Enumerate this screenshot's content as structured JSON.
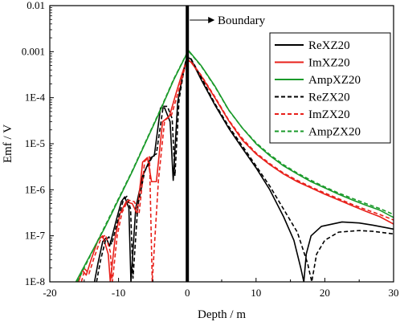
{
  "chart_data": {
    "type": "line",
    "title": "",
    "xlabel": "Depth / m",
    "ylabel": "Emf / V",
    "xlim": [
      -20,
      30
    ],
    "ylim": [
      1e-08,
      0.01
    ],
    "yscale": "log",
    "grid": false,
    "x_ticks": [
      -20,
      -10,
      0,
      10,
      20,
      30
    ],
    "x_tick_labels": [
      "-20",
      "-10",
      "0",
      "10",
      "20",
      "30"
    ],
    "y_ticks": [
      1e-08,
      1e-07,
      1e-06,
      1e-05,
      0.0001,
      0.001,
      0.01
    ],
    "y_tick_labels": [
      "1E-8",
      "1E-7",
      "1E-6",
      "1E-5",
      "1E-4",
      "0.001",
      "0.01"
    ],
    "legend_position": "top-right",
    "annotation": {
      "text": "Boundary",
      "x": 0
    },
    "series": [
      {
        "name": "ReXZ20",
        "color": "#000000",
        "dash": "solid",
        "x": [
          -13.5,
          -13,
          -12.3,
          -11.8,
          -11.3,
          -10.4,
          -9.6,
          -9.1,
          -8.5,
          -8.2,
          -7.5,
          -6.5,
          -5.3,
          -4.8,
          -3.9,
          -3.3,
          -2.5,
          -2.05,
          -1.4,
          -0.7,
          -0.25,
          0,
          0.5,
          2,
          4,
          6,
          8,
          10,
          12,
          14,
          15.5,
          16.5,
          16.95,
          17.3,
          18,
          19.5,
          22.5,
          25,
          27,
          30
        ],
        "y": [
          1e-08,
          2.5e-08,
          7.5e-08,
          9e-08,
          6e-08,
          2e-07,
          5.5e-07,
          7e-07,
          4e-07,
          1e-08,
          4e-07,
          2e-06,
          5e-06,
          5.5e-06,
          6e-05,
          6e-05,
          3e-05,
          1.6e-06,
          8e-05,
          0.0003,
          0.0006,
          0.00075,
          0.0007,
          0.00025,
          7e-05,
          2.2e-05,
          8e-06,
          3e-06,
          1e-06,
          2.6e-07,
          8e-08,
          2e-08,
          1e-08,
          4e-08,
          1e-07,
          1.6e-07,
          2e-07,
          1.9e-07,
          1.7e-07,
          1.4e-07
        ]
      },
      {
        "name": "ImXZ20",
        "color": "#e8201a",
        "dash": "solid",
        "x": [
          -15.8,
          -15.3,
          -14.7,
          -14,
          -13,
          -12.3,
          -11.5,
          -11.2,
          -10.5,
          -9.8,
          -8.9,
          -8,
          -7.3,
          -6.5,
          -5.8,
          -5.2,
          -4.5,
          -3.6,
          -2.6,
          -1.6,
          -0.8,
          -0.1,
          0.5,
          2,
          4,
          6,
          8,
          10,
          12,
          14,
          16,
          18,
          20,
          22,
          24,
          26,
          28,
          30
        ],
        "y": [
          1e-08,
          1.8e-08,
          1.4e-08,
          3e-08,
          8e-08,
          1e-07,
          4e-08,
          1e-08,
          9e-08,
          3e-07,
          5.5e-07,
          5e-07,
          3e-07,
          4e-06,
          5e-06,
          1.5e-06,
          1.5e-06,
          3e-05,
          4e-05,
          0.00013,
          0.00032,
          0.00065,
          0.0006,
          0.0003,
          0.0001,
          3.2e-05,
          1.2e-05,
          6e-06,
          3.5e-06,
          2.2e-06,
          1.5e-06,
          1.1e-06,
          8e-07,
          6e-07,
          4.5e-07,
          3.4e-07,
          2.6e-07,
          1.8e-07
        ]
      },
      {
        "name": "AmpXZ20",
        "color": "#1a9a2a",
        "dash": "solid",
        "x": [
          -16.2,
          -12,
          -8,
          -4,
          -2,
          0,
          0.2,
          2,
          4,
          6,
          8,
          10,
          12,
          14,
          16,
          18,
          20,
          22,
          24,
          26,
          28,
          30
        ],
        "y": [
          1e-08,
          1.5e-07,
          2.5e-06,
          5e-05,
          0.00024,
          0.00095,
          0.00105,
          0.0005,
          0.00018,
          5.5e-05,
          2.2e-05,
          1e-05,
          5.5e-06,
          3.3e-06,
          2.2e-06,
          1.5e-06,
          1.1e-06,
          8e-07,
          6e-07,
          4.6e-07,
          3.6e-07,
          2.5e-07
        ]
      },
      {
        "name": "ReZX20",
        "color": "#000000",
        "dash": "dashed",
        "x": [
          -13.2,
          -12.6,
          -11.9,
          -11.4,
          -11,
          -10.1,
          -9.3,
          -8.8,
          -8.25,
          -7.9,
          -7.2,
          -6.2,
          -5,
          -4.5,
          -3.5,
          -2.9,
          -2.2,
          -1.8,
          -1.2,
          -0.6,
          -0.2,
          0,
          0.5,
          2,
          4,
          6,
          8,
          10,
          12,
          14,
          16,
          17.5,
          18.1,
          18.8,
          20,
          22,
          25,
          27,
          30
        ],
        "y": [
          1e-08,
          3e-08,
          8e-08,
          9.5e-08,
          6.5e-08,
          2.2e-07,
          6e-07,
          7.2e-07,
          3.8e-07,
          1.2e-08,
          4.5e-07,
          2.5e-06,
          5.5e-06,
          6e-06,
          6.5e-05,
          6.5e-05,
          3.5e-05,
          2e-06,
          9e-05,
          0.00032,
          0.00062,
          0.00078,
          0.00072,
          0.00028,
          7.5e-05,
          2.4e-05,
          9e-06,
          3.3e-06,
          1.2e-06,
          3.8e-07,
          1.2e-07,
          2.5e-08,
          1e-08,
          4e-08,
          8e-08,
          1.2e-07,
          1.3e-07,
          1.25e-07,
          1.1e-07
        ]
      },
      {
        "name": "ImZX20",
        "color": "#e8201a",
        "dash": "dashed",
        "x": [
          -15.4,
          -14.9,
          -14.3,
          -13.6,
          -12.6,
          -11.9,
          -11.2,
          -10.9,
          -10.2,
          -9.5,
          -8.6,
          -7.7,
          -7,
          -6.2,
          -5.5,
          -5.1,
          -4.2,
          -3.3,
          -2.3,
          -1.3,
          -0.6,
          0,
          0.5,
          2,
          4,
          6,
          8,
          10,
          12,
          14,
          16,
          18,
          20,
          22,
          24,
          26,
          28,
          30
        ],
        "y": [
          1e-08,
          1.9e-08,
          1.5e-08,
          3.2e-08,
          8.5e-08,
          1.05e-07,
          4.5e-08,
          1e-08,
          1e-07,
          3.2e-07,
          6e-07,
          5.5e-07,
          3.2e-07,
          4.2e-06,
          5.2e-06,
          1e-08,
          1.6e-06,
          3.2e-05,
          4.2e-05,
          0.000135,
          0.00033,
          0.00068,
          0.00062,
          0.00031,
          0.000105,
          3.3e-05,
          1.3e-05,
          6.3e-06,
          3.7e-06,
          2.3e-06,
          1.6e-06,
          1.15e-06,
          8.5e-07,
          6.4e-07,
          4.8e-07,
          3.7e-07,
          2.9e-07,
          2.2e-07
        ]
      },
      {
        "name": "AmpZX20",
        "color": "#1a9a2a",
        "dash": "dashed",
        "x": [
          -16,
          -12,
          -8,
          -4,
          -2,
          0,
          0.2,
          2,
          4,
          6,
          8,
          10,
          12,
          14,
          16,
          18,
          20,
          22,
          24,
          26,
          28,
          30
        ],
        "y": [
          1e-08,
          1.6e-07,
          2.6e-06,
          5.2e-05,
          0.00025,
          0.00096,
          0.00102,
          0.00049,
          0.000175,
          5.4e-05,
          2.2e-05,
          1.05e-05,
          5.8e-06,
          3.5e-06,
          2.3e-06,
          1.6e-06,
          1.15e-06,
          8.5e-07,
          6.5e-07,
          5e-07,
          3.9e-07,
          2.9e-07
        ]
      }
    ]
  }
}
